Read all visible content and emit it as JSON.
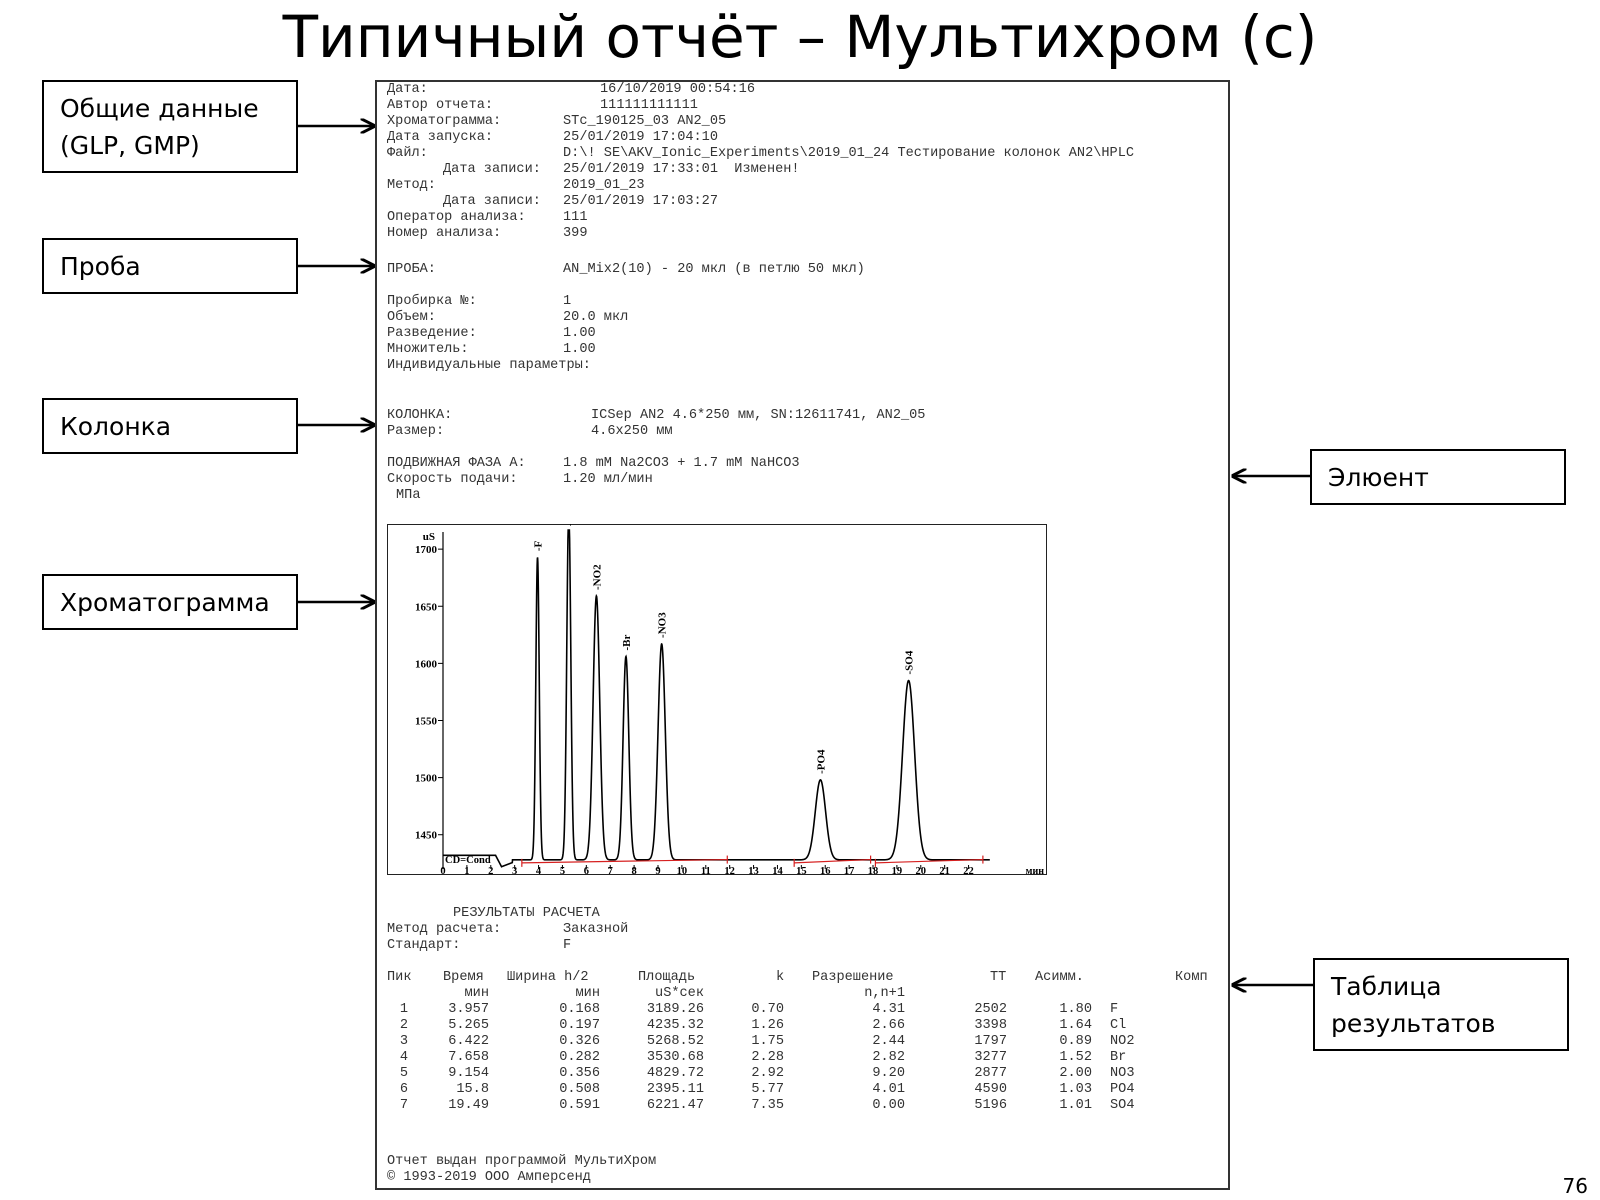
{
  "slide": {
    "title": "Типичный отчёт – Мультихром (с)",
    "page_number": "76"
  },
  "callouts": [
    {
      "lines": [
        "Общие данные",
        "(GLP, GMP)"
      ]
    },
    {
      "lines": [
        "Проба"
      ]
    },
    {
      "lines": [
        "Колонка"
      ]
    },
    {
      "lines": [
        "Хроматограмма"
      ]
    },
    {
      "lines": [
        "Элюент"
      ]
    },
    {
      "lines": [
        "Таблица",
        "результатов"
      ]
    }
  ],
  "report": {
    "header_rows": [
      [
        "Дата:",
        "16/10/2019 00:54:16"
      ],
      [
        "Автор отчета:",
        "111111111111"
      ],
      [
        "Хроматограмма:",
        "STc_190125_03 AN2_05"
      ],
      [
        "Дата запуска:",
        "25/01/2019 17:04:10"
      ],
      [
        "Файл:",
        "D:\\! SE\\AKV_Ionic_Experiments\\2019_01_24 Тестирование колонок AN2\\HPLC"
      ],
      [
        "Дата записи:",
        "25/01/2019 17:33:01  Изменен!"
      ],
      [
        "Метод:",
        "2019_01_23"
      ],
      [
        "Дата записи:",
        "25/01/2019 17:03:27"
      ],
      [
        "Оператор анализа:",
        "111"
      ],
      [
        "Номер анализа:",
        "399"
      ]
    ],
    "sample_label": "ПРОБА:",
    "sample_value": "AN_Mix2(10) - 20 мкл (в петлю 50 мкл)",
    "sample_rows": [
      [
        "Пробирка №:",
        "1"
      ],
      [
        "Объем:",
        "20.0 мкл"
      ],
      [
        "Разведение:",
        "1.00"
      ],
      [
        "Множитель:",
        "1.00"
      ]
    ],
    "individual_params": "Индивидуальные параметры:",
    "column_rows": [
      [
        "КОЛОНКА:",
        "ICSep AN2 4.6*250 мм, SN:12611741, AN2_05"
      ],
      [
        "Размер:",
        "4.6x250 мм"
      ]
    ],
    "eluent_rows": [
      [
        "ПОДВИЖНАЯ ФАЗА A:",
        "1.8 mM Na2CO3 + 1.7 mM NaHCO3"
      ],
      [
        "Скорость подачи:",
        "1.20 мл/мин"
      ]
    ],
    "pressure_unit": "МПа",
    "results_title": "РЕЗУЛЬТАТЫ РАСЧЕТА",
    "calc_rows": [
      [
        "Метод расчета:",
        "Заказной"
      ],
      [
        "Стандарт:",
        "F"
      ]
    ],
    "table_headers": [
      [
        "Пик",
        ""
      ],
      [
        "Время",
        "мин"
      ],
      [
        "Ширина h/2",
        "мин"
      ],
      [
        "Площадь",
        "uS*сек"
      ],
      [
        "k",
        ""
      ],
      [
        "Разрешение",
        "n,n+1"
      ],
      [
        "TT",
        ""
      ],
      [
        "Асимм.",
        ""
      ],
      [
        "Комп",
        ""
      ]
    ],
    "table_rows": [
      [
        "1",
        "3.957",
        "0.168",
        "3189.26",
        "0.70",
        "4.31",
        "2502",
        "1.80",
        "F"
      ],
      [
        "2",
        "5.265",
        "0.197",
        "4235.32",
        "1.26",
        "2.66",
        "3398",
        "1.64",
        "Cl"
      ],
      [
        "3",
        "6.422",
        "0.326",
        "5268.52",
        "1.75",
        "2.44",
        "1797",
        "0.89",
        "NO2"
      ],
      [
        "4",
        "7.658",
        "0.282",
        "3530.68",
        "2.28",
        "2.82",
        "3277",
        "1.52",
        "Br"
      ],
      [
        "5",
        "9.154",
        "0.356",
        "4829.72",
        "2.92",
        "9.20",
        "2877",
        "2.00",
        "NO3"
      ],
      [
        "6",
        "15.8",
        "0.508",
        "2395.11",
        "5.77",
        "4.01",
        "4590",
        "1.03",
        "PO4"
      ],
      [
        "7",
        "19.49",
        "0.591",
        "6221.47",
        "7.35",
        "0.00",
        "5196",
        "1.01",
        "SO4"
      ]
    ],
    "footer_lines": [
      "Отчет выдан программой МультиХром",
      "© 1993-2019 ООО Амперсенд"
    ]
  },
  "chart_data": {
    "type": "line",
    "title": "",
    "xlabel": "мин",
    "ylabel": "uS",
    "trace_label": "CD=Cond",
    "xlim": [
      0,
      25.2
    ],
    "ylim": [
      1420,
      1715
    ],
    "x_ticks": [
      0,
      1,
      2,
      3,
      4,
      5,
      6,
      7,
      8,
      9,
      10,
      11,
      12,
      13,
      14,
      15,
      16,
      17,
      18,
      19,
      20,
      21,
      22
    ],
    "y_ticks": [
      1450,
      1500,
      1550,
      1600,
      1650,
      1700
    ],
    "baseline": 1428,
    "peaks": [
      {
        "name": "F",
        "time": 3.957,
        "height": 1693,
        "half_width": 0.168
      },
      {
        "name": "Cl",
        "time": 5.265,
        "height": 1735,
        "half_width": 0.197
      },
      {
        "name": "NO2",
        "time": 6.422,
        "height": 1659,
        "half_width": 0.326
      },
      {
        "name": "Br",
        "time": 7.658,
        "height": 1606,
        "half_width": 0.282
      },
      {
        "name": "NO3",
        "time": 9.154,
        "height": 1617,
        "half_width": 0.356
      },
      {
        "name": "PO4",
        "time": 15.8,
        "height": 1498,
        "half_width": 0.508
      },
      {
        "name": "SO4",
        "time": 19.49,
        "height": 1585,
        "half_width": 0.591
      }
    ],
    "colors": {
      "trace": "#000000",
      "baseline_marks": "#d62020"
    }
  }
}
